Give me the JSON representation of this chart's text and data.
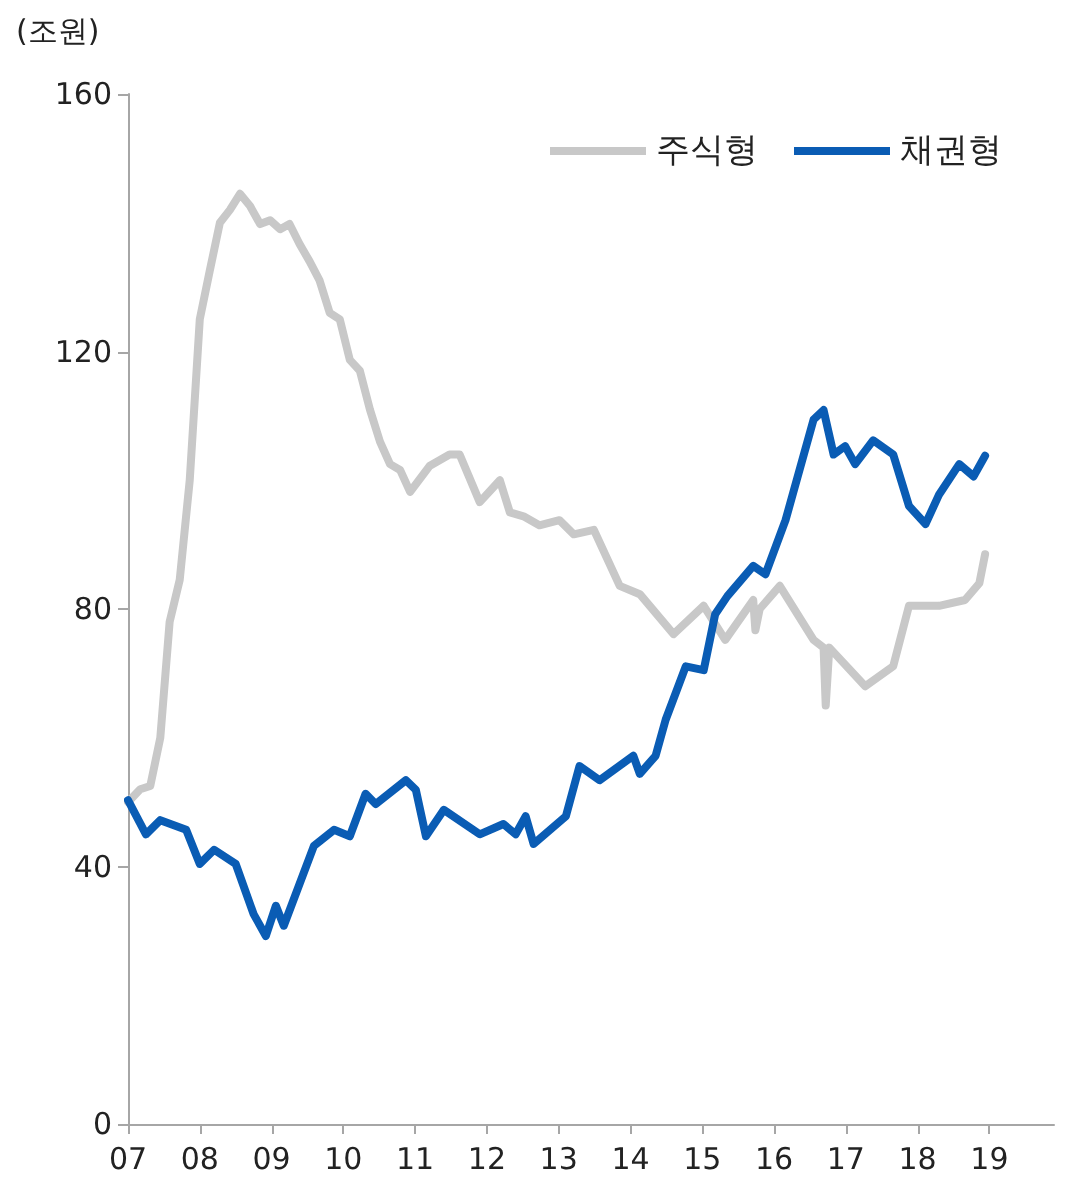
{
  "chart_data": {
    "type": "line",
    "ylabel": "(조원)",
    "xlim": [
      2007,
      2019.9
    ],
    "xticks": [
      {
        "value": 2007,
        "label": "07"
      },
      {
        "value": 2008,
        "label": "08"
      },
      {
        "value": 2009,
        "label": "09"
      },
      {
        "value": 2010,
        "label": "10"
      },
      {
        "value": 2011,
        "label": "11"
      },
      {
        "value": 2012,
        "label": "12"
      },
      {
        "value": 2013,
        "label": "13"
      },
      {
        "value": 2014,
        "label": "14"
      },
      {
        "value": 2015,
        "label": "15"
      },
      {
        "value": 2016,
        "label": "16"
      },
      {
        "value": 2017,
        "label": "17"
      },
      {
        "value": 2018,
        "label": "18"
      },
      {
        "value": 2019,
        "label": "19"
      }
    ],
    "ylim": [
      0,
      160
    ],
    "yticks": [
      0,
      40,
      80,
      120,
      160
    ],
    "grid": false,
    "legend": "top right",
    "marker": "none",
    "line_style": "solid",
    "series": [
      {
        "name": "주식형",
        "color": "#c8c8c8",
        "x": [
          2007.0,
          2007.17,
          2007.31,
          2007.45,
          2007.58,
          2007.72,
          2007.86,
          2008.0,
          2008.14,
          2008.28,
          2008.42,
          2008.56,
          2008.7,
          2008.84,
          2008.98,
          2009.12,
          2009.25,
          2009.39,
          2009.53,
          2009.67,
          2009.81,
          2009.95,
          2010.09,
          2010.23,
          2010.37,
          2010.51,
          2010.65,
          2010.79,
          2010.93,
          2011.2,
          2011.48,
          2011.62,
          2011.9,
          2012.18,
          2012.32,
          2012.51,
          2012.73,
          2013.01,
          2013.21,
          2013.49,
          2013.85,
          2014.13,
          2014.6,
          2015.02,
          2015.32,
          2015.71,
          2015.74,
          2015.8,
          2016.08,
          2016.55,
          2016.69,
          2016.72,
          2016.77,
          2017.27,
          2017.66,
          2017.88,
          2018.3,
          2018.66,
          2018.86,
          2018.94
        ],
        "values": [
          50,
          52,
          52.5,
          60,
          78,
          84.5,
          100,
          125,
          132.6,
          140,
          142,
          144.5,
          142.6,
          139.8,
          140.4,
          139,
          139.8,
          136.7,
          134,
          131,
          126,
          125,
          118.7,
          117,
          111,
          106,
          102.5,
          101.6,
          98.2,
          102.2,
          104,
          104,
          96.6,
          100,
          95,
          94.4,
          93,
          93.8,
          91.6,
          92.3,
          83.6,
          82.3,
          76.1,
          80.5,
          75.2,
          81.4,
          76.7,
          80,
          83.6,
          75.2,
          74,
          65,
          74,
          68,
          71.1,
          80.5,
          80.5,
          81.4,
          84,
          88.5
        ]
      },
      {
        "name": "채권형",
        "color": "#0a5cb4",
        "x": [
          2007.0,
          2007.25,
          2007.45,
          2007.81,
          2008.0,
          2008.2,
          2008.5,
          2008.75,
          2008.92,
          2009.06,
          2009.17,
          2009.59,
          2009.87,
          2010.09,
          2010.31,
          2010.45,
          2010.87,
          2011.01,
          2011.15,
          2011.4,
          2011.9,
          2012.23,
          2012.4,
          2012.54,
          2012.65,
          2013.1,
          2013.29,
          2013.57,
          2014.04,
          2014.13,
          2014.35,
          2014.49,
          2014.77,
          2015.02,
          2015.18,
          2015.35,
          2015.71,
          2015.88,
          2016.16,
          2016.55,
          2016.69,
          2016.83,
          2016.99,
          2017.13,
          2017.38,
          2017.66,
          2017.88,
          2018.11,
          2018.3,
          2018.58,
          2018.78,
          2018.94
        ],
        "values": [
          50.3,
          45,
          47.2,
          45.7,
          40.4,
          42.6,
          40.4,
          32.6,
          29.2,
          33.9,
          30.8,
          43.2,
          45.7,
          44.7,
          51.3,
          49.7,
          53.4,
          51.9,
          44.7,
          48.8,
          45,
          46.6,
          45,
          47.8,
          43.5,
          47.8,
          55.6,
          53.4,
          57.2,
          54.4,
          57.2,
          62.8,
          71.1,
          70.5,
          79.2,
          82,
          86.7,
          85.4,
          93.8,
          109.4,
          110.9,
          104,
          105.3,
          102.5,
          106.2,
          104,
          96,
          93.2,
          97.8,
          102.5,
          100.6,
          103.8
        ]
      }
    ]
  }
}
